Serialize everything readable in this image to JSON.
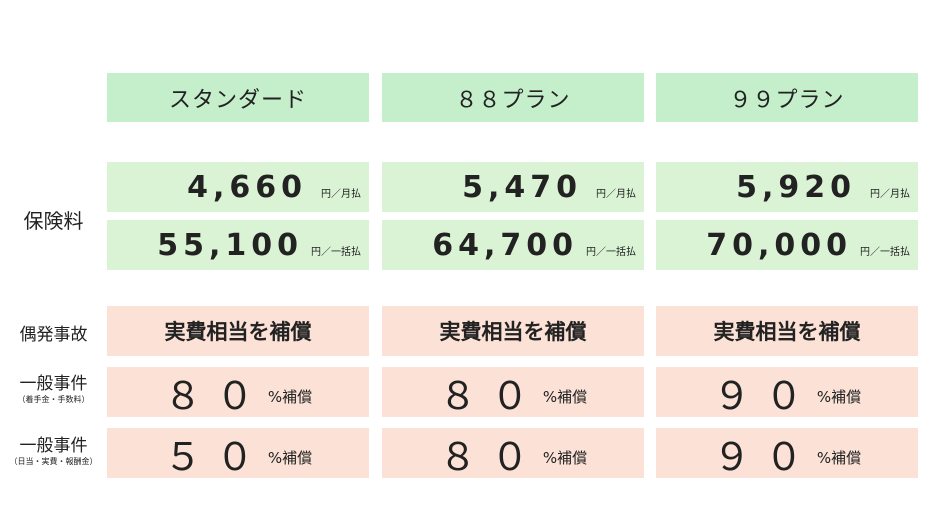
{
  "plans": [
    "スタンダード",
    "８８プラン",
    "９９プラン"
  ],
  "premium": {
    "label": "保険料",
    "monthly": [
      "4,660",
      "5,470",
      "5,920"
    ],
    "monthly_unit": "円／月払",
    "lump": [
      "55,100",
      "64,700",
      "70,000"
    ],
    "lump_unit": "円／一括払"
  },
  "rows": [
    {
      "label": "偶発事故",
      "sub": "",
      "values": [
        "実費相当を補償",
        "実費相当を補償",
        "実費相当を補償"
      ]
    },
    {
      "label": "一般事件",
      "sub": "（着手金・手数料）",
      "values": [
        "８０",
        "８０",
        "９０"
      ],
      "suffix": "%補償"
    },
    {
      "label": "一般事件",
      "sub": "（日当・実費・報酬金）",
      "values": [
        "５０",
        "８０",
        "９０"
      ],
      "suffix": "%補償"
    }
  ]
}
